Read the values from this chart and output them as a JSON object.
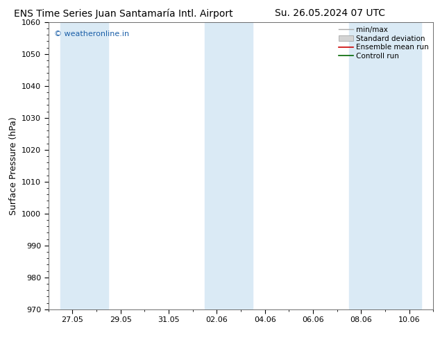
{
  "title_left": "ENS Time Series Juan Santamaría Intl. Airport",
  "title_right": "Su. 26.05.2024 07 UTC",
  "ylabel": "Surface Pressure (hPa)",
  "ylim": [
    970,
    1060
  ],
  "yticks": [
    970,
    980,
    990,
    1000,
    1010,
    1020,
    1030,
    1040,
    1050,
    1060
  ],
  "xtick_labels": [
    "27.05",
    "29.05",
    "31.05",
    "02.06",
    "04.06",
    "06.06",
    "08.06",
    "10.06"
  ],
  "xmin": 0,
  "xmax": 14,
  "shaded_bands": [
    {
      "xmin": -0.5,
      "xmax": 1.5
    },
    {
      "xmin": 5.5,
      "xmax": 7.5
    },
    {
      "xmin": 11.5,
      "xmax": 14.5
    }
  ],
  "band_color": "#daeaf5",
  "background_color": "#ffffff",
  "plot_bg_color": "#ffffff",
  "watermark": "© weatheronline.in",
  "watermark_color": "#1a5fa8",
  "legend_items": [
    {
      "label": "min/max",
      "type": "line",
      "color": "#aaaaaa",
      "lw": 1.2
    },
    {
      "label": "Standard deviation",
      "type": "patch",
      "facecolor": "#d3d3d3",
      "edgecolor": "#aaaaaa"
    },
    {
      "label": "Ensemble mean run",
      "type": "line",
      "color": "#cc0000",
      "lw": 1.2
    },
    {
      "label": "Controll run",
      "type": "line",
      "color": "#006600",
      "lw": 1.2
    }
  ],
  "title_fontsize": 10,
  "ylabel_fontsize": 9,
  "tick_fontsize": 8,
  "legend_fontsize": 7.5
}
